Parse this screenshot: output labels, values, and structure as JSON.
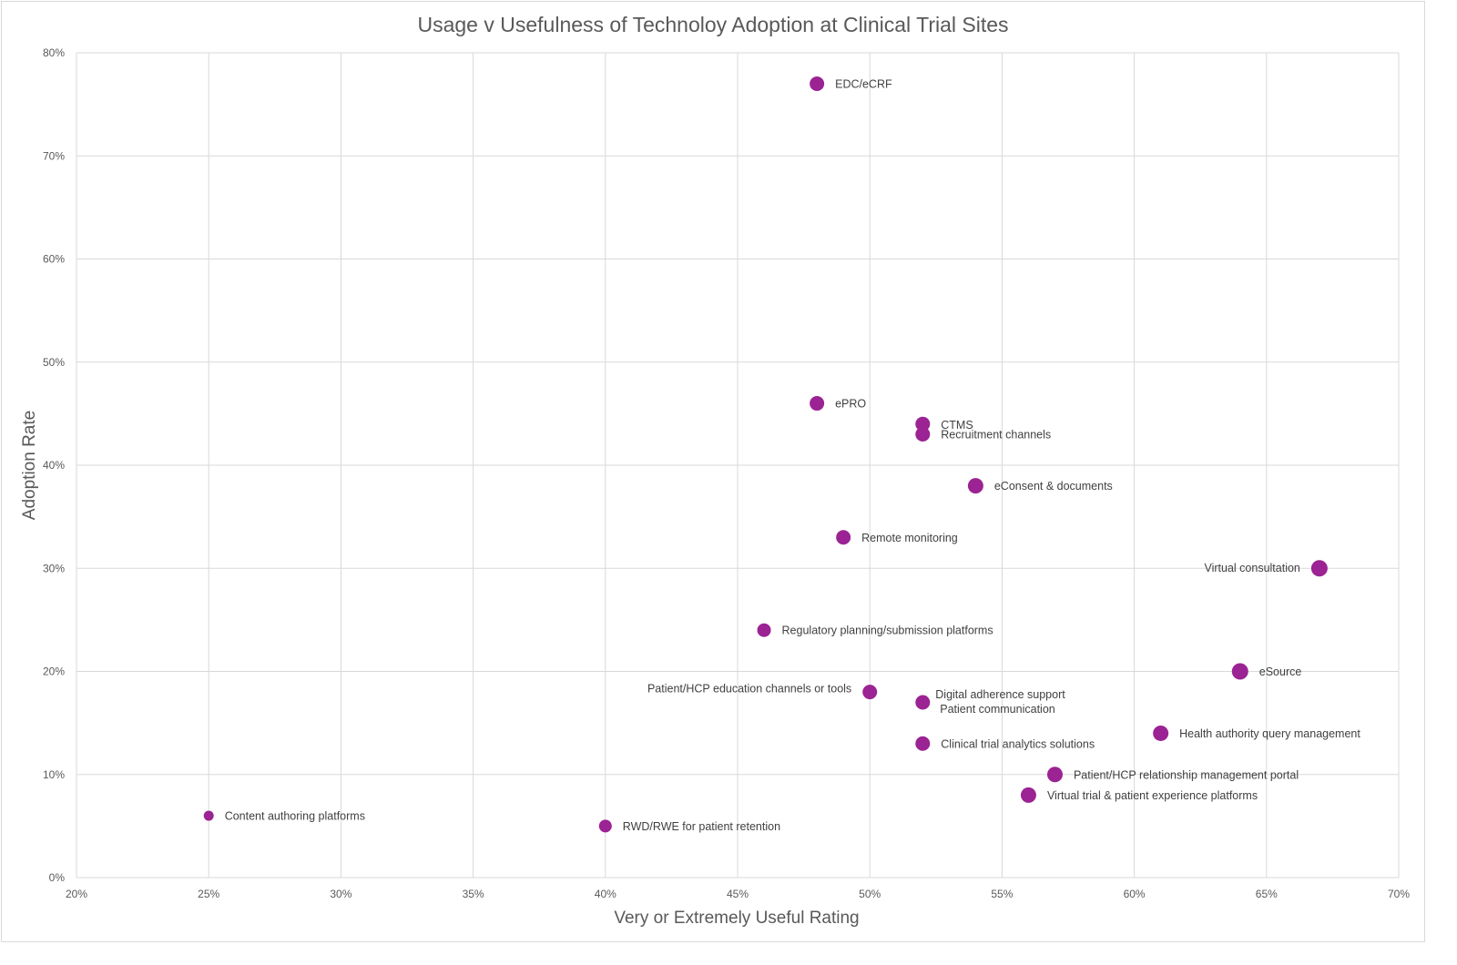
{
  "chart_data": {
    "type": "scatter",
    "title": "Usage v Usefulness of Technoloy Adoption at Clinical Trial Sites",
    "xlabel": "Very or Extremely Useful Rating",
    "ylabel": "Adoption Rate",
    "xlim": [
      0.2,
      0.7
    ],
    "ylim": [
      0.0,
      0.8
    ],
    "x_ticks": [
      {
        "value": 0.2,
        "label": "20%"
      },
      {
        "value": 0.25,
        "label": "25%"
      },
      {
        "value": 0.3,
        "label": "30%"
      },
      {
        "value": 0.35,
        "label": "35%"
      },
      {
        "value": 0.4,
        "label": "40%"
      },
      {
        "value": 0.45,
        "label": "45%"
      },
      {
        "value": 0.5,
        "label": "50%"
      },
      {
        "value": 0.55,
        "label": "55%"
      },
      {
        "value": 0.6,
        "label": "60%"
      },
      {
        "value": 0.65,
        "label": "65%"
      },
      {
        "value": 0.7,
        "label": "70%"
      }
    ],
    "y_ticks": [
      {
        "value": 0.0,
        "label": "0%"
      },
      {
        "value": 0.1,
        "label": "10%"
      },
      {
        "value": 0.2,
        "label": "20%"
      },
      {
        "value": 0.3,
        "label": "30%"
      },
      {
        "value": 0.4,
        "label": "40%"
      },
      {
        "value": 0.5,
        "label": "50%"
      },
      {
        "value": 0.6,
        "label": "60%"
      },
      {
        "value": 0.7,
        "label": "70%"
      },
      {
        "value": 0.8,
        "label": "80%"
      }
    ],
    "grid": true,
    "marker_color": "#9b2393",
    "points": [
      {
        "label": "EDC/eCRF",
        "x": 0.48,
        "y": 0.77,
        "size": 8,
        "label_side": "right"
      },
      {
        "label": "ePRO",
        "x": 0.48,
        "y": 0.46,
        "size": 8,
        "label_side": "right"
      },
      {
        "label": "CTMS",
        "x": 0.52,
        "y": 0.44,
        "size": 8,
        "label_side": "right"
      },
      {
        "label": "Recruitment channels",
        "x": 0.52,
        "y": 0.43,
        "size": 8,
        "label_side": "right"
      },
      {
        "label": "eConsent & documents",
        "x": 0.54,
        "y": 0.38,
        "size": 8.5,
        "label_side": "right"
      },
      {
        "label": "Remote monitoring",
        "x": 0.49,
        "y": 0.33,
        "size": 8,
        "label_side": "right"
      },
      {
        "label": "Virtual consultation",
        "x": 0.67,
        "y": 0.3,
        "size": 9,
        "label_side": "left"
      },
      {
        "label": "Regulatory planning/submission platforms",
        "x": 0.46,
        "y": 0.24,
        "size": 7.5,
        "label_side": "right"
      },
      {
        "label": "eSource",
        "x": 0.64,
        "y": 0.2,
        "size": 9,
        "label_side": "right"
      },
      {
        "label": "Patient/HCP education channels or tools",
        "x": 0.5,
        "y": 0.18,
        "size": 8,
        "label_side": "left"
      },
      {
        "label": "Digital adherence support",
        "x": 0.52,
        "y": 0.17,
        "size": 8,
        "label_side": "right-up"
      },
      {
        "label": "Patient communication",
        "x": 0.52,
        "y": 0.17,
        "size": 8,
        "label_side": "right-down",
        "draw_marker": false
      },
      {
        "label": "Health authority query management",
        "x": 0.61,
        "y": 0.14,
        "size": 8.5,
        "label_side": "right"
      },
      {
        "label": "Clinical trial analytics solutions",
        "x": 0.52,
        "y": 0.13,
        "size": 8,
        "label_side": "right"
      },
      {
        "label": "Patient/HCP relationship management portal",
        "x": 0.57,
        "y": 0.1,
        "size": 8.5,
        "label_side": "right"
      },
      {
        "label": "Virtual trial & patient experience platforms",
        "x": 0.56,
        "y": 0.08,
        "size": 8.5,
        "label_side": "right"
      },
      {
        "label": "Content authoring platforms",
        "x": 0.25,
        "y": 0.06,
        "size": 5.5,
        "label_side": "right"
      },
      {
        "label": "RWD/RWE for patient retention",
        "x": 0.4,
        "y": 0.05,
        "size": 7,
        "label_side": "right"
      }
    ]
  }
}
